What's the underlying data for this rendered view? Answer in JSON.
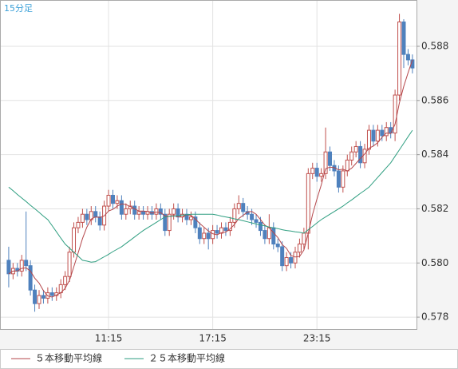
{
  "chart_data": {
    "type": "candlestick",
    "label": "15分足",
    "categories": [
      null,
      null,
      null,
      null,
      null,
      null,
      null,
      null,
      null,
      null,
      null,
      null,
      null,
      null,
      null,
      null,
      null,
      null,
      null,
      null,
      null,
      null,
      null,
      "11:15",
      null,
      null,
      null,
      null,
      null,
      null,
      null,
      null,
      null,
      null,
      null,
      null,
      null,
      null,
      null,
      null,
      null,
      null,
      null,
      null,
      null,
      null,
      null,
      "17:15",
      null,
      null,
      null,
      null,
      null,
      null,
      null,
      null,
      null,
      null,
      null,
      null,
      null,
      null,
      null,
      null,
      null,
      null,
      null,
      null,
      null,
      null,
      null,
      "23:15",
      null,
      null,
      null,
      null,
      null,
      null,
      null,
      null,
      null,
      null,
      null,
      null,
      null,
      null,
      null,
      null,
      null,
      null,
      null,
      null,
      null,
      null
    ],
    "open": [
      0.5801,
      0.5796,
      0.5798,
      0.5797,
      0.5801,
      0.5799,
      0.579,
      0.5785,
      0.5788,
      0.5787,
      0.5789,
      0.5788,
      0.5789,
      0.5792,
      0.5795,
      0.5804,
      0.5813,
      0.5815,
      0.5818,
      0.5816,
      0.5819,
      0.5817,
      0.5814,
      0.5821,
      0.5825,
      0.5822,
      0.5823,
      0.5818,
      0.582,
      0.5821,
      0.5818,
      0.5819,
      0.5818,
      0.5819,
      0.5818,
      0.582,
      0.5818,
      0.5812,
      0.5818,
      0.582,
      0.5817,
      0.5818,
      0.5816,
      0.5817,
      0.5813,
      0.5809,
      0.5811,
      0.5809,
      0.5812,
      0.5811,
      0.5813,
      0.5812,
      0.5815,
      0.582,
      0.5822,
      0.5819,
      0.5818,
      0.5816,
      0.5815,
      0.5812,
      0.5809,
      0.5813,
      0.5807,
      0.5806,
      0.5799,
      0.5802,
      0.58,
      0.5804,
      0.5807,
      0.5811,
      0.5833,
      0.5835,
      0.5832,
      0.5833,
      0.5841,
      0.5836,
      0.5834,
      0.5828,
      0.5834,
      0.5838,
      0.5841,
      0.5843,
      0.5837,
      0.5842,
      0.5849,
      0.5845,
      0.5849,
      0.5847,
      0.585,
      0.5848,
      0.5862,
      0.5889,
      0.5877,
      0.5875
    ],
    "high": [
      0.5806,
      0.58,
      0.58,
      0.5803,
      0.5819,
      0.5801,
      0.5792,
      0.579,
      0.579,
      0.5791,
      0.5791,
      0.5791,
      0.5794,
      0.5797,
      0.5806,
      0.5815,
      0.5817,
      0.582,
      0.582,
      0.5821,
      0.5821,
      0.5819,
      0.5823,
      0.5827,
      0.5827,
      0.5825,
      0.5825,
      0.5822,
      0.5823,
      0.5823,
      0.5821,
      0.5821,
      0.5821,
      0.5821,
      0.5822,
      0.5822,
      0.582,
      0.582,
      0.5822,
      0.5822,
      0.582,
      0.582,
      0.5819,
      0.5819,
      0.5815,
      0.5813,
      0.5813,
      0.5814,
      0.5814,
      0.5815,
      0.5815,
      0.5817,
      0.5822,
      0.5825,
      0.5824,
      0.5821,
      0.582,
      0.5818,
      0.5817,
      0.5814,
      0.5818,
      0.5815,
      0.5809,
      0.5808,
      0.5804,
      0.5804,
      0.5806,
      0.5809,
      0.5813,
      0.5835,
      0.5837,
      0.5837,
      0.5835,
      0.585,
      0.5843,
      0.5838,
      0.5836,
      0.5836,
      0.584,
      0.5843,
      0.5845,
      0.5845,
      0.5844,
      0.5851,
      0.5851,
      0.5851,
      0.5851,
      0.5852,
      0.5852,
      0.5864,
      0.5892,
      0.589,
      0.5879,
      0.5877
    ],
    "low": [
      0.5791,
      0.5794,
      0.5795,
      0.5795,
      0.5797,
      0.5788,
      0.5782,
      0.5783,
      0.5785,
      0.5785,
      0.5786,
      0.5786,
      0.5787,
      0.579,
      0.5793,
      0.5802,
      0.5811,
      0.5813,
      0.5814,
      0.5814,
      0.5815,
      0.5812,
      0.5812,
      0.5819,
      0.582,
      0.582,
      0.5816,
      0.5816,
      0.5818,
      0.5816,
      0.5816,
      0.5816,
      0.5816,
      0.5816,
      0.5816,
      0.5816,
      0.581,
      0.581,
      0.5816,
      0.5815,
      0.5815,
      0.5814,
      0.5814,
      0.5811,
      0.5807,
      0.5807,
      0.5805,
      0.5807,
      0.5809,
      0.5809,
      0.581,
      0.581,
      0.5813,
      0.5818,
      0.5817,
      0.5816,
      0.5814,
      0.5813,
      0.581,
      0.5807,
      0.5807,
      0.5805,
      0.5804,
      0.5797,
      0.5797,
      0.5798,
      0.5798,
      0.5802,
      0.5805,
      0.5805,
      0.5831,
      0.583,
      0.583,
      0.5831,
      0.5834,
      0.5832,
      0.5826,
      0.5826,
      0.5832,
      0.5836,
      0.5839,
      0.5835,
      0.5835,
      0.584,
      0.5843,
      0.5843,
      0.5845,
      0.5845,
      0.5846,
      0.5845,
      0.586,
      0.5872,
      0.5873,
      0.587
    ],
    "close": [
      0.5796,
      0.5798,
      0.5797,
      0.5801,
      0.5799,
      0.579,
      0.5785,
      0.5788,
      0.5787,
      0.5789,
      0.5788,
      0.5789,
      0.5792,
      0.5795,
      0.5804,
      0.5813,
      0.5815,
      0.5818,
      0.5816,
      0.5819,
      0.5817,
      0.5814,
      0.5821,
      0.5825,
      0.5822,
      0.5823,
      0.5818,
      0.582,
      0.5821,
      0.5818,
      0.5819,
      0.5818,
      0.5819,
      0.5818,
      0.582,
      0.5818,
      0.5812,
      0.5818,
      0.582,
      0.5817,
      0.5818,
      0.5816,
      0.5817,
      0.5813,
      0.5809,
      0.5811,
      0.5809,
      0.5812,
      0.5811,
      0.5813,
      0.5812,
      0.5815,
      0.582,
      0.5822,
      0.5819,
      0.5818,
      0.5816,
      0.5815,
      0.5812,
      0.5809,
      0.5813,
      0.5807,
      0.5806,
      0.5799,
      0.5802,
      0.58,
      0.5804,
      0.5807,
      0.5811,
      0.5833,
      0.5835,
      0.5832,
      0.5833,
      0.5841,
      0.5836,
      0.5834,
      0.5828,
      0.5834,
      0.5838,
      0.5841,
      0.5843,
      0.5837,
      0.5842,
      0.5849,
      0.5845,
      0.5849,
      0.5847,
      0.585,
      0.5848,
      0.5862,
      0.5889,
      0.5877,
      0.5875,
      0.5872
    ],
    "up_color": "#c0504d",
    "down_color": "#4f81bd",
    "series": [
      {
        "name": "５本移動平均線",
        "color": "#b5474b",
        "values": [
          0.5796,
          0.5797,
          0.5797,
          0.5798,
          0.57982,
          0.5797,
          0.57944,
          0.57926,
          0.57898,
          0.57878,
          0.57874,
          0.57882,
          0.5789,
          0.57906,
          0.57936,
          0.57986,
          0.58038,
          0.5809,
          0.58132,
          0.58162,
          0.5817,
          0.58168,
          0.58174,
          0.58192,
          0.58198,
          0.5821,
          0.58218,
          0.58216,
          0.58208,
          0.582,
          0.58192,
          0.58192,
          0.5819,
          0.58184,
          0.58188,
          0.58186,
          0.58174,
          0.58172,
          0.58176,
          0.5817,
          0.5817,
          0.58178,
          0.58176,
          0.58162,
          0.58146,
          0.58132,
          0.58118,
          0.58108,
          0.58104,
          0.58112,
          0.58114,
          0.58126,
          0.58142,
          0.58164,
          0.58176,
          0.58188,
          0.5819,
          0.5818,
          0.5816,
          0.5814,
          0.5813,
          0.58112,
          0.58094,
          0.58068,
          0.58054,
          0.58028,
          0.58022,
          0.58024,
          0.58048,
          0.5811,
          0.5818,
          0.58236,
          0.58288,
          0.58348,
          0.58354,
          0.58352,
          0.58344,
          0.58346,
          0.5834,
          0.5835,
          0.58368,
          0.58386,
          0.58402,
          0.58424,
          0.58432,
          0.58444,
          0.58464,
          0.5848,
          0.58478,
          0.58512,
          0.58592,
          0.58652,
          0.58702,
          0.5875
        ]
      },
      {
        "name": "２５本移動平均線",
        "color": "#2e9e80",
        "values": [
          0.5828,
          0.58267,
          0.58253,
          0.5824,
          0.58227,
          0.58213,
          0.582,
          0.58187,
          0.58173,
          0.5816,
          0.58138,
          0.58115,
          0.58092,
          0.5807,
          0.58055,
          0.5804,
          0.58025,
          0.5801,
          0.58007,
          0.58003,
          0.58005,
          0.58014,
          0.58023,
          0.58032,
          0.58042,
          0.58051,
          0.5806,
          0.58072,
          0.58084,
          0.58096,
          0.58108,
          0.5812,
          0.5813,
          0.5814,
          0.5815,
          0.5816,
          0.5817,
          0.58172,
          0.58173,
          0.58175,
          0.58177,
          0.58178,
          0.5818,
          0.5818,
          0.5818,
          0.5818,
          0.5818,
          0.5818,
          0.58177,
          0.58173,
          0.5817,
          0.58167,
          0.58163,
          0.5816,
          0.58156,
          0.58152,
          0.58148,
          0.58144,
          0.5814,
          0.58137,
          0.58133,
          0.5813,
          0.58127,
          0.58123,
          0.5812,
          0.58118,
          0.58115,
          0.58113,
          0.5811,
          0.58123,
          0.58135,
          0.58148,
          0.5816,
          0.5817,
          0.5818,
          0.5819,
          0.582,
          0.5821,
          0.58222,
          0.58233,
          0.58245,
          0.58257,
          0.58268,
          0.5828,
          0.58298,
          0.58316,
          0.58334,
          0.58352,
          0.5837,
          0.58394,
          0.58418,
          0.58442,
          0.58466,
          0.5849
        ]
      }
    ],
    "ylim": [
      0.57756,
      0.58971
    ],
    "yticks": [
      0.578,
      {
        "value": 0.58,
        "label": "0.580"
      },
      0.582,
      0.584,
      0.586,
      0.588
    ],
    "grid": true
  }
}
